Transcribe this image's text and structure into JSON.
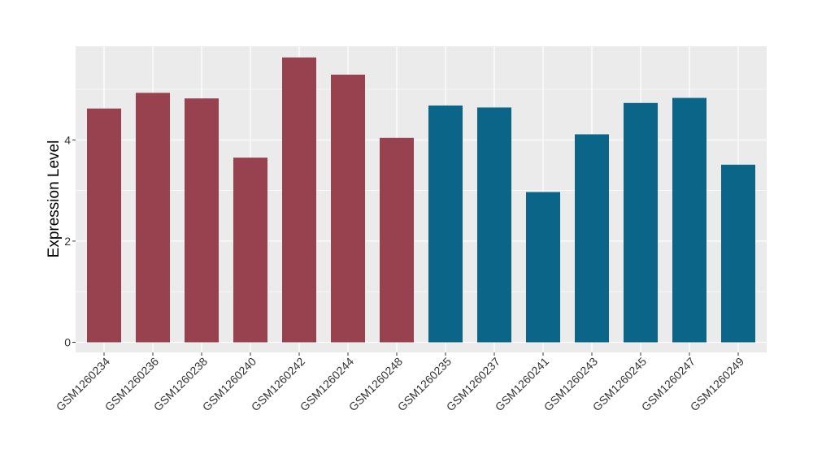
{
  "chart_data": {
    "type": "bar",
    "title": "",
    "xlabel": "",
    "ylabel": "Expression Level",
    "ylim": [
      -0.2,
      5.85
    ],
    "y_ticks": [
      0,
      2,
      4
    ],
    "grid": true,
    "categories": [
      "GSM1260234",
      "GSM1260236",
      "GSM1260238",
      "GSM1260240",
      "GSM1260242",
      "GSM1260244",
      "GSM1260248",
      "GSM1260235",
      "GSM1260237",
      "GSM1260241",
      "GSM1260243",
      "GSM1260245",
      "GSM1260247",
      "GSM1260249"
    ],
    "values": [
      4.62,
      4.93,
      4.82,
      3.65,
      5.63,
      5.29,
      4.04,
      4.68,
      4.64,
      2.97,
      4.11,
      4.73,
      4.83,
      3.51
    ],
    "group_sizes": [
      7,
      7
    ],
    "colors": {
      "group1": "#99424f",
      "group2": "#0a6588",
      "panel_background": "#ebebeb",
      "grid": "#ffffff"
    }
  }
}
